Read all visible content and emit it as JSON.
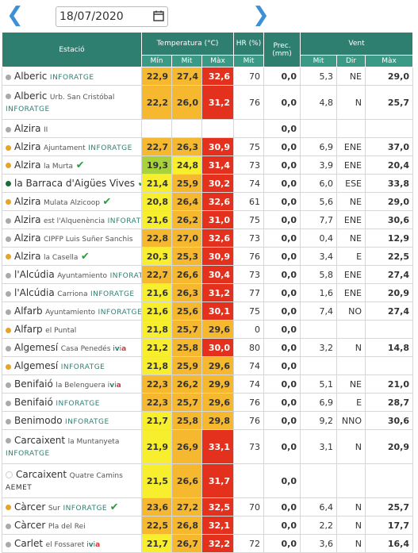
{
  "datebar": {
    "date": "18/07/2020",
    "prev_label": "❮",
    "next_label": "❯"
  },
  "header": {
    "estacio": "Estació",
    "temperatura": "Temperatura (°C)",
    "hr": "HR (%)",
    "prec": "Prec. (mm)",
    "vent": "Vent",
    "min": "Mín",
    "mit": "Mit",
    "max": "Màx",
    "hr_mit": "Mit",
    "vent_mit": "Mit",
    "vent_dir": "Dir",
    "vent_max": "Màx"
  },
  "colors": {
    "orange": "#f5b82e",
    "red": "#e4311e",
    "yellow": "#f7ee2d",
    "green": "#a8d23a",
    "header": "#2f7f71",
    "dot_grey": "#aaaaaa",
    "dot_orange": "#e8a32a",
    "dot_green": "#1d6b3b"
  },
  "rows": [
    {
      "name": "Alberic",
      "sub": "",
      "tag": "INFORATGE",
      "tick": false,
      "ivia": false,
      "dot": "grey",
      "two": false,
      "min": "22,9",
      "mit": "27,4",
      "max": "32,6",
      "hr": "70",
      "prec": "0,0",
      "vmit": "5,3",
      "vdir": "NE",
      "vmax": "29,0",
      "cmin": "orange",
      "cmit": "orange",
      "cmax": "red"
    },
    {
      "name": "Alberic",
      "sub": "Urb. San Cristóbal",
      "tag": "INFORATGE",
      "tick": false,
      "ivia": false,
      "dot": "grey",
      "two": true,
      "min": "22,2",
      "mit": "26,0",
      "max": "31,2",
      "hr": "76",
      "prec": "0,0",
      "vmit": "4,8",
      "vdir": "N",
      "vmax": "25,7",
      "cmin": "orange",
      "cmit": "orange",
      "cmax": "red"
    },
    {
      "name": "Alzira",
      "sub": "II",
      "tag": "",
      "tick": false,
      "ivia": false,
      "dot": "grey",
      "two": false,
      "min": "",
      "mit": "",
      "max": "",
      "hr": "",
      "prec": "0,0",
      "vmit": "",
      "vdir": "",
      "vmax": "",
      "cmin": "none",
      "cmit": "none",
      "cmax": "none"
    },
    {
      "name": "Alzira",
      "sub": "Ajuntament",
      "tag": "INFORATGE",
      "tick": false,
      "ivia": false,
      "dot": "orange",
      "two": false,
      "min": "22,7",
      "mit": "26,3",
      "max": "30,9",
      "hr": "75",
      "prec": "0,0",
      "vmit": "6,9",
      "vdir": "ENE",
      "vmax": "37,0",
      "cmin": "orange",
      "cmit": "orange",
      "cmax": "red"
    },
    {
      "name": "Alzira",
      "sub": "la Murta",
      "tag": "",
      "tick": true,
      "ivia": false,
      "dot": "orange",
      "two": false,
      "min": "19,3",
      "mit": "24,8",
      "max": "31,4",
      "hr": "73",
      "prec": "0,0",
      "vmit": "3,9",
      "vdir": "ENE",
      "vmax": "20,4",
      "cmin": "green",
      "cmit": "yellow",
      "cmax": "red"
    },
    {
      "name": "la Barraca d'Aigües Vives",
      "sub": "",
      "tag": "",
      "tick": true,
      "ivia": false,
      "dot": "green",
      "two": false,
      "min": "21,4",
      "mit": "25,9",
      "max": "30,2",
      "hr": "74",
      "prec": "0,0",
      "vmit": "6,0",
      "vdir": "ESE",
      "vmax": "33,8",
      "cmin": "yellow",
      "cmit": "orange",
      "cmax": "red"
    },
    {
      "name": "Alzira",
      "sub": "Mulata Alzicoop",
      "tag": "",
      "tick": true,
      "ivia": false,
      "dot": "orange",
      "two": false,
      "min": "20,8",
      "mit": "26,4",
      "max": "32,6",
      "hr": "61",
      "prec": "0,0",
      "vmit": "5,6",
      "vdir": "NE",
      "vmax": "29,0",
      "cmin": "yellow",
      "cmit": "orange",
      "cmax": "red"
    },
    {
      "name": "Alzira",
      "sub": "est l'Alquenència",
      "tag": "INFORATGE",
      "tick": false,
      "ivia": false,
      "dot": "grey",
      "two": false,
      "min": "21,6",
      "mit": "26,2",
      "max": "31,0",
      "hr": "75",
      "prec": "0,0",
      "vmit": "7,7",
      "vdir": "ENE",
      "vmax": "30,6",
      "cmin": "yellow",
      "cmit": "orange",
      "cmax": "red"
    },
    {
      "name": "Alzira",
      "sub": "CIPFP Luis Suñer Sanchis",
      "tag": "",
      "tick": false,
      "ivia": false,
      "dot": "grey",
      "two": false,
      "min": "22,8",
      "mit": "27,0",
      "max": "32,6",
      "hr": "73",
      "prec": "0,0",
      "vmit": "0,4",
      "vdir": "NE",
      "vmax": "12,9",
      "cmin": "orange",
      "cmit": "orange",
      "cmax": "red"
    },
    {
      "name": "Alzira",
      "sub": "la Casella",
      "tag": "",
      "tick": true,
      "ivia": false,
      "dot": "orange",
      "two": false,
      "min": "20,3",
      "mit": "25,3",
      "max": "30,9",
      "hr": "76",
      "prec": "0,0",
      "vmit": "3,4",
      "vdir": "E",
      "vmax": "22,5",
      "cmin": "yellow",
      "cmit": "orange",
      "cmax": "red"
    },
    {
      "name": "l'Alcúdia",
      "sub": "Ayuntamiento",
      "tag": "INFORATGE",
      "tick": false,
      "ivia": false,
      "dot": "grey",
      "two": false,
      "min": "22,7",
      "mit": "26,6",
      "max": "30,4",
      "hr": "73",
      "prec": "0,0",
      "vmit": "5,8",
      "vdir": "ENE",
      "vmax": "27,4",
      "cmin": "orange",
      "cmit": "orange",
      "cmax": "red"
    },
    {
      "name": "l'Alcúdia",
      "sub": "Carriona",
      "tag": "INFORATGE",
      "tick": false,
      "ivia": false,
      "dot": "grey",
      "two": false,
      "min": "21,6",
      "mit": "26,3",
      "max": "31,2",
      "hr": "77",
      "prec": "0,0",
      "vmit": "1,6",
      "vdir": "ENE",
      "vmax": "20,9",
      "cmin": "yellow",
      "cmit": "orange",
      "cmax": "red"
    },
    {
      "name": "Alfarb",
      "sub": "Ayuntamiento",
      "tag": "INFORATGE",
      "tick": false,
      "ivia": false,
      "dot": "grey",
      "two": false,
      "min": "21,6",
      "mit": "25,6",
      "max": "30,1",
      "hr": "75",
      "prec": "0,0",
      "vmit": "7,4",
      "vdir": "NO",
      "vmax": "27,4",
      "cmin": "yellow",
      "cmit": "orange",
      "cmax": "red"
    },
    {
      "name": "Alfarp",
      "sub": "el Puntal",
      "tag": "",
      "tick": false,
      "ivia": false,
      "dot": "orange",
      "two": false,
      "min": "21,8",
      "mit": "25,7",
      "max": "29,6",
      "hr": "0",
      "prec": "0,0",
      "vmit": "",
      "vdir": "",
      "vmax": "",
      "cmin": "yellow",
      "cmit": "orange",
      "cmax": "orange"
    },
    {
      "name": "Algemesí",
      "sub": "Casa Penedés",
      "tag": "",
      "tick": false,
      "ivia": true,
      "dot": "grey",
      "two": false,
      "min": "21,2",
      "mit": "25,8",
      "max": "30,0",
      "hr": "80",
      "prec": "0,0",
      "vmit": "3,2",
      "vdir": "N",
      "vmax": "14,8",
      "cmin": "yellow",
      "cmit": "orange",
      "cmax": "red"
    },
    {
      "name": "Algemesí",
      "sub": "",
      "tag": "INFORATGE",
      "tick": false,
      "ivia": false,
      "dot": "orange",
      "two": false,
      "min": "21,8",
      "mit": "25,9",
      "max": "29,6",
      "hr": "74",
      "prec": "0,0",
      "vmit": "",
      "vdir": "",
      "vmax": "",
      "cmin": "yellow",
      "cmit": "orange",
      "cmax": "orange"
    },
    {
      "name": "Benifaió",
      "sub": "la Belenguera",
      "tag": "",
      "tick": false,
      "ivia": true,
      "dot": "grey",
      "two": false,
      "min": "22,3",
      "mit": "26,2",
      "max": "29,9",
      "hr": "74",
      "prec": "0,0",
      "vmit": "5,1",
      "vdir": "NE",
      "vmax": "21,0",
      "cmin": "orange",
      "cmit": "orange",
      "cmax": "orange"
    },
    {
      "name": "Benifaió",
      "sub": "",
      "tag": "INFORATGE",
      "tick": false,
      "ivia": false,
      "dot": "grey",
      "two": false,
      "min": "22,3",
      "mit": "25,7",
      "max": "29,6",
      "hr": "76",
      "prec": "0,0",
      "vmit": "6,9",
      "vdir": "E",
      "vmax": "28,7",
      "cmin": "orange",
      "cmit": "orange",
      "cmax": "orange"
    },
    {
      "name": "Benimodo",
      "sub": "",
      "tag": "INFORATGE",
      "tick": false,
      "ivia": false,
      "dot": "grey",
      "two": false,
      "min": "21,7",
      "mit": "25,8",
      "max": "29,8",
      "hr": "76",
      "prec": "0,0",
      "vmit": "9,2",
      "vdir": "NNO",
      "vmax": "30,6",
      "cmin": "yellow",
      "cmit": "orange",
      "cmax": "orange"
    },
    {
      "name": "Carcaixent",
      "sub": "la Muntanyeta",
      "tag": "INFORATGE",
      "tick": false,
      "ivia": false,
      "dot": "grey",
      "two": true,
      "min": "21,9",
      "mit": "26,9",
      "max": "33,1",
      "hr": "73",
      "prec": "0,0",
      "vmit": "3,1",
      "vdir": "N",
      "vmax": "20,9",
      "cmin": "yellow",
      "cmit": "orange",
      "cmax": "red"
    },
    {
      "name": "Carcaixent",
      "sub": "Quatre Camins",
      "tag": "AEMET",
      "tick": false,
      "ivia": false,
      "dot": "white",
      "two": true,
      "min": "21,5",
      "mit": "26,6",
      "max": "31,7",
      "hr": "",
      "prec": "0,0",
      "vmit": "",
      "vdir": "",
      "vmax": "",
      "cmin": "yellow",
      "cmit": "orange",
      "cmax": "red"
    },
    {
      "name": "Càrcer",
      "sub": "Sur",
      "tag": "INFORATGE",
      "tick": true,
      "ivia": false,
      "dot": "orange",
      "two": false,
      "min": "23,6",
      "mit": "27,2",
      "max": "32,5",
      "hr": "70",
      "prec": "0,0",
      "vmit": "6,4",
      "vdir": "N",
      "vmax": "25,7",
      "cmin": "orange",
      "cmit": "orange",
      "cmax": "red"
    },
    {
      "name": "Càrcer",
      "sub": "Pla del Rei",
      "tag": "",
      "tick": false,
      "ivia": false,
      "dot": "grey",
      "two": false,
      "min": "22,5",
      "mit": "26,8",
      "max": "32,1",
      "hr": "",
      "prec": "0,0",
      "vmit": "2,2",
      "vdir": "N",
      "vmax": "17,7",
      "cmin": "orange",
      "cmit": "orange",
      "cmax": "red"
    },
    {
      "name": "Carlet",
      "sub": "el Fossaret",
      "tag": "",
      "tick": false,
      "ivia": true,
      "dot": "grey",
      "two": false,
      "min": "21,7",
      "mit": "26,7",
      "max": "32,2",
      "hr": "72",
      "prec": "0,0",
      "vmit": "3,6",
      "vdir": "N",
      "vmax": "16,4",
      "cmin": "yellow",
      "cmit": "orange",
      "cmax": "red"
    }
  ]
}
